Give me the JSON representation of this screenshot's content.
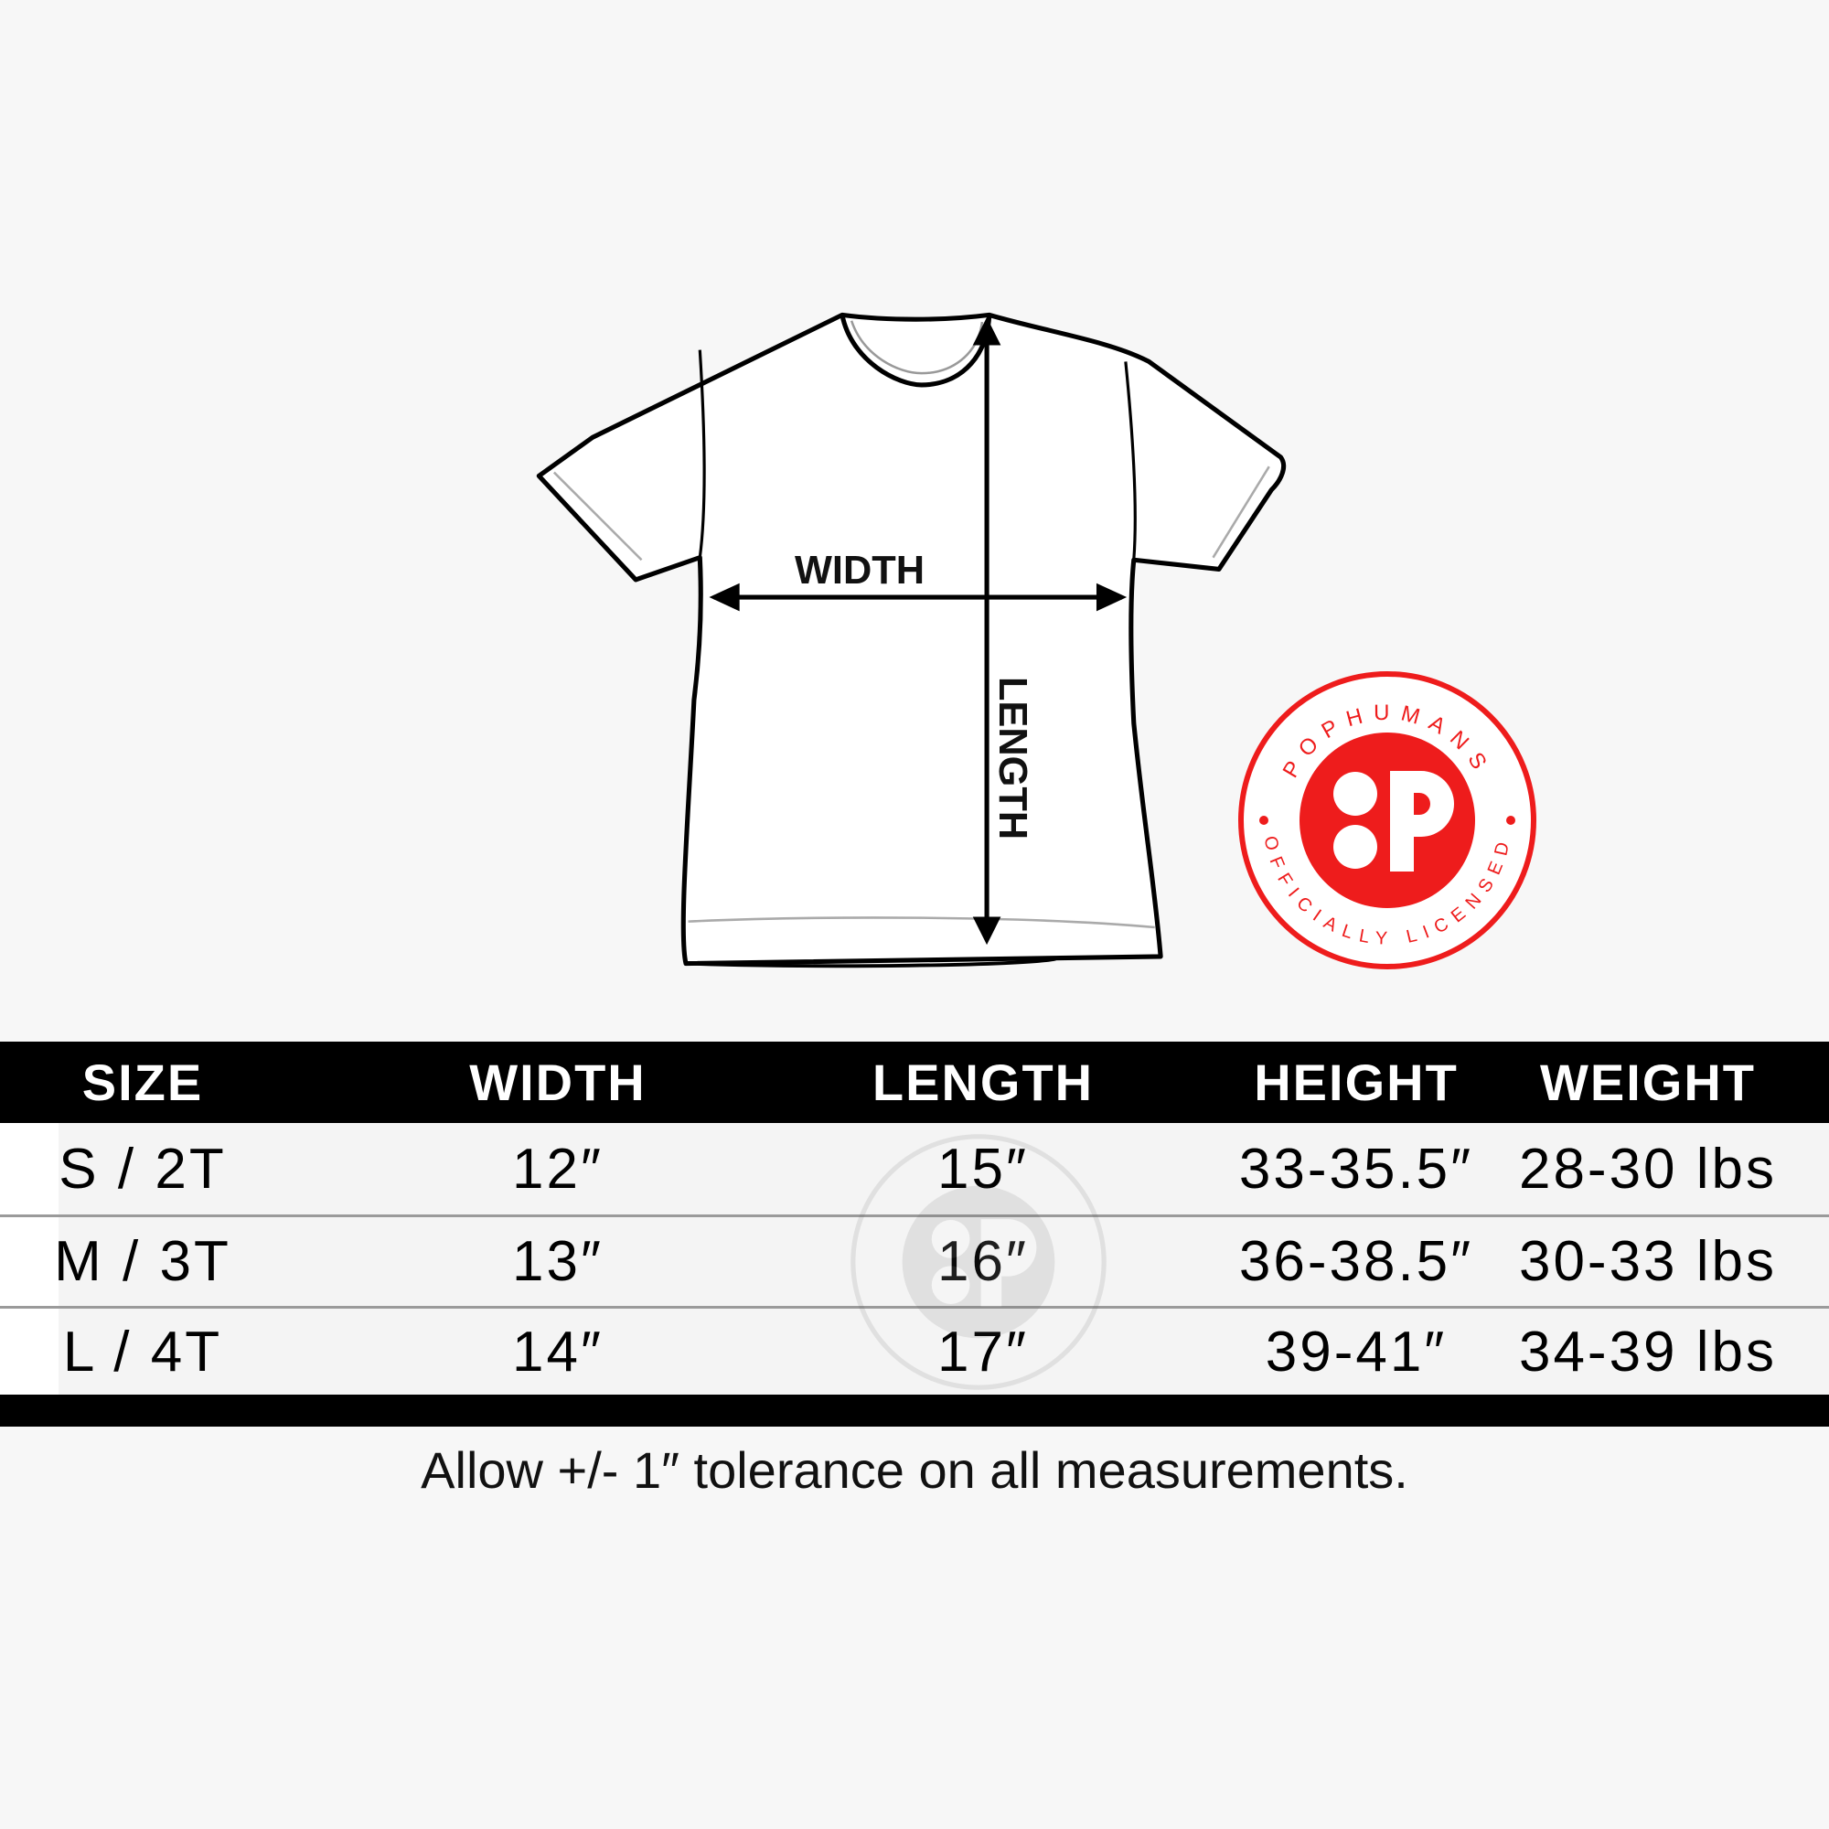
{
  "diagram": {
    "width_label": "WIDTH",
    "length_label": "LENGTH"
  },
  "badge": {
    "brand": "POPHUMANS",
    "tagline": "OFFICIALLY LICENSED",
    "color": "#ee1c1c"
  },
  "table": {
    "headers": [
      "SIZE",
      "WIDTH",
      "LENGTH",
      "HEIGHT",
      "WEIGHT"
    ],
    "rows": [
      [
        "S / 2T",
        "12″",
        "15″",
        "33-35.5″",
        "28-30 lbs"
      ],
      [
        "M / 3T",
        "13″",
        "16″",
        "36-38.5″",
        "30-33 lbs"
      ],
      [
        "L / 4T",
        "14″",
        "17″",
        "39-41″",
        "34-39 lbs"
      ]
    ]
  },
  "note": "Allow +/- 1″ tolerance on all measurements."
}
